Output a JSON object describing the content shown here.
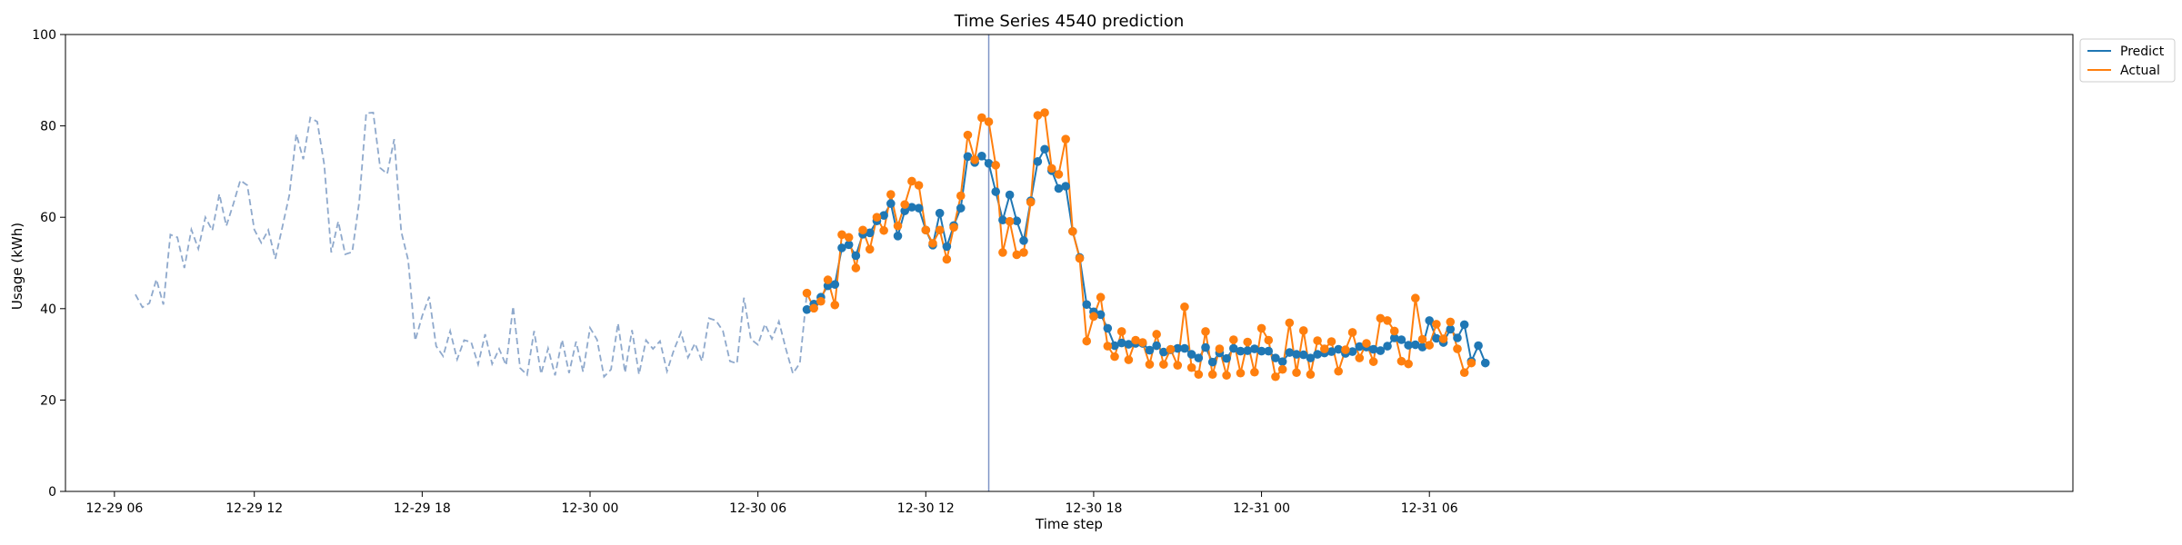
{
  "chart_data": {
    "type": "line",
    "title": "Time Series 4540 prediction",
    "xlabel": "Time step",
    "ylabel": "Usage (kWh)",
    "ylim": [
      0,
      100
    ],
    "yticks": [
      0,
      20,
      40,
      60,
      80,
      100
    ],
    "x_axis": {
      "start": "12-29 07:45",
      "step_minutes": 15,
      "xlim_steps": [
        -10,
        277
      ],
      "ticks": [
        {
          "step": -3,
          "label": "12-29 06"
        },
        {
          "step": 17,
          "label": "12-29 12"
        },
        {
          "step": 41,
          "label": "12-29 18"
        },
        {
          "step": 65,
          "label": "12-30 00"
        },
        {
          "step": 89,
          "label": "12-30 06"
        },
        {
          "step": 113,
          "label": "12-30 12"
        },
        {
          "step": 137,
          "label": "12-30 18"
        },
        {
          "step": 161,
          "label": "12-31 00"
        },
        {
          "step": 185,
          "label": "12-31 06"
        }
      ]
    },
    "forecast_start_step": 122,
    "legend": {
      "placement": "upper-right-outside",
      "entries": [
        {
          "name": "Predict",
          "color": "#1f77b4"
        },
        {
          "name": "Actual",
          "color": "#ff7f0e"
        }
      ]
    },
    "series": [
      {
        "name": "History",
        "style": "dashed",
        "color": "#8fa9cc",
        "values": [
          43.1,
          40.3,
          41.2,
          46.4,
          40.9,
          56.2,
          55.6,
          48.9,
          57.3,
          53.1,
          60.0,
          57.1,
          65.1,
          58.1,
          62.9,
          68.1,
          67.0,
          57.3,
          54.4,
          57.2,
          50.9,
          57.8,
          64.8,
          78.2,
          72.7,
          81.8,
          80.9,
          71.5,
          52.3,
          59.1,
          51.9,
          52.4,
          63.4,
          82.8,
          82.9,
          70.8,
          69.5,
          77.1,
          56.9,
          50.6,
          33.0,
          38.4,
          42.6,
          31.8,
          29.6,
          35.1,
          28.9,
          33.1,
          32.7,
          27.8,
          34.4,
          27.9,
          31.2,
          27.6,
          40.5,
          27.0,
          25.5,
          35.1,
          25.7,
          31.3,
          25.4,
          33.2,
          25.9,
          32.8,
          26.2,
          35.8,
          33.2,
          25.1,
          26.7,
          36.8,
          26.0,
          35.3,
          25.6,
          33.1,
          31.2,
          32.9,
          26.3,
          31.0,
          34.8,
          29.3,
          32.4,
          28.5,
          37.9,
          37.4,
          35.1,
          28.5,
          28.0,
          42.4,
          33.3,
          32.1,
          36.6,
          33.4,
          37.2,
          31.2,
          25.8,
          28.1,
          43.4
        ]
      },
      {
        "name": "Predict",
        "style": "solid-markers",
        "color": "#1f77b4",
        "start_step": 96,
        "values": [
          39.8,
          41.0,
          42.5,
          45.0,
          45.3,
          53.3,
          54.0,
          51.6,
          56.3,
          56.6,
          59.2,
          60.4,
          63.0,
          55.9,
          61.4,
          62.2,
          62.0,
          57.2,
          53.9,
          60.9,
          53.6,
          58.2,
          62.0,
          73.3,
          72.0,
          73.4,
          71.8,
          65.6,
          59.4,
          64.9,
          59.2,
          54.9,
          63.6,
          72.2,
          74.9,
          70.2,
          66.3,
          66.8,
          56.9,
          51.2,
          40.9,
          39.3,
          38.7,
          35.7,
          31.9,
          32.5,
          32.2,
          32.4,
          32.4,
          30.9,
          31.9,
          30.5,
          31.0,
          31.3,
          31.3,
          30.0,
          29.2,
          31.5,
          28.3,
          30.3,
          29.1,
          31.3,
          30.7,
          30.8,
          31.2,
          30.7,
          30.7,
          29.2,
          28.4,
          30.4,
          30.0,
          29.9,
          29.2,
          30.0,
          30.3,
          30.6,
          31.1,
          30.2,
          30.6,
          31.7,
          31.6,
          31.1,
          30.8,
          31.8,
          33.6,
          33.2,
          32.0,
          32.1,
          31.6,
          37.4,
          33.5,
          32.6,
          35.5,
          33.6,
          36.5,
          28.5,
          31.9,
          28.1
        ]
      },
      {
        "name": "Actual",
        "style": "solid-markers",
        "color": "#ff7f0e",
        "start_step": 96,
        "values": [
          43.4,
          40.1,
          41.6,
          46.3,
          40.8,
          56.2,
          55.6,
          48.9,
          57.2,
          53.0,
          60.0,
          57.1,
          65.0,
          58.1,
          62.8,
          67.9,
          67.0,
          57.2,
          54.3,
          57.2,
          50.8,
          57.8,
          64.7,
          78.0,
          72.6,
          81.8,
          80.9,
          71.4,
          52.3,
          59.1,
          51.8,
          52.3,
          63.3,
          82.3,
          82.9,
          70.7,
          69.4,
          77.1,
          56.9,
          51.0,
          32.9,
          38.3,
          42.5,
          31.8,
          29.5,
          35.0,
          28.8,
          33.1,
          32.6,
          27.8,
          34.4,
          27.8,
          31.1,
          27.6,
          40.4,
          27.1,
          25.6,
          35.0,
          25.6,
          31.2,
          25.4,
          33.2,
          25.9,
          32.7,
          26.1,
          35.7,
          33.1,
          25.1,
          26.7,
          36.9,
          26.0,
          35.2,
          25.6,
          33.0,
          31.2,
          32.8,
          26.3,
          31.0,
          34.8,
          29.2,
          32.4,
          28.4,
          37.9,
          37.4,
          35.1,
          28.5,
          27.9,
          42.3,
          33.3,
          32.0,
          36.6,
          33.4,
          37.1,
          31.2,
          26.0,
          28.1
        ]
      }
    ]
  }
}
